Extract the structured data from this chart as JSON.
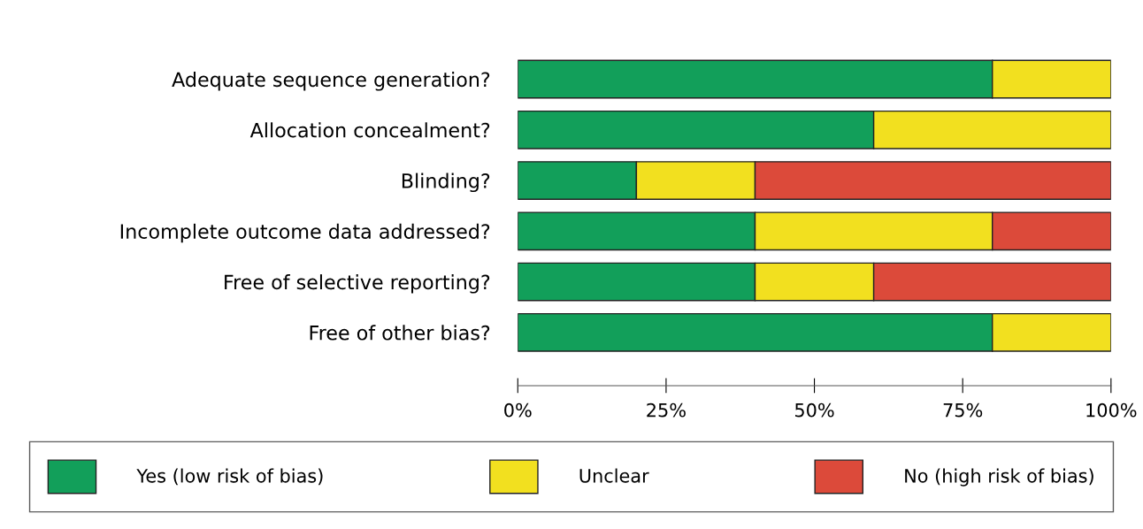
{
  "chart_data": {
    "type": "bar",
    "orientation": "horizontal",
    "stacked": true,
    "categories": [
      "Adequate sequence generation?",
      "Allocation concealment?",
      "Blinding?",
      "Incomplete outcome data addressed?",
      "Free of selective reporting?",
      "Free of other bias?"
    ],
    "series": [
      {
        "name": "Yes (low risk of bias)",
        "color": "#129f5a",
        "values": [
          80,
          60,
          20,
          40,
          40,
          80
        ]
      },
      {
        "name": "Unclear",
        "color": "#f2e01f",
        "values": [
          20,
          40,
          20,
          40,
          20,
          20
        ]
      },
      {
        "name": "No (high risk of bias)",
        "color": "#dc4a3a",
        "values": [
          null,
          null,
          60,
          20,
          40,
          null
        ]
      }
    ],
    "xlim": [
      0,
      100
    ],
    "xticks": [
      {
        "value": 0,
        "label": "0%"
      },
      {
        "value": 25,
        "label": "25%"
      },
      {
        "value": 50,
        "label": "50%"
      },
      {
        "value": 75,
        "label": "75%"
      },
      {
        "value": 100,
        "label": "100%"
      }
    ],
    "legend": "bottom",
    "grid": false
  }
}
